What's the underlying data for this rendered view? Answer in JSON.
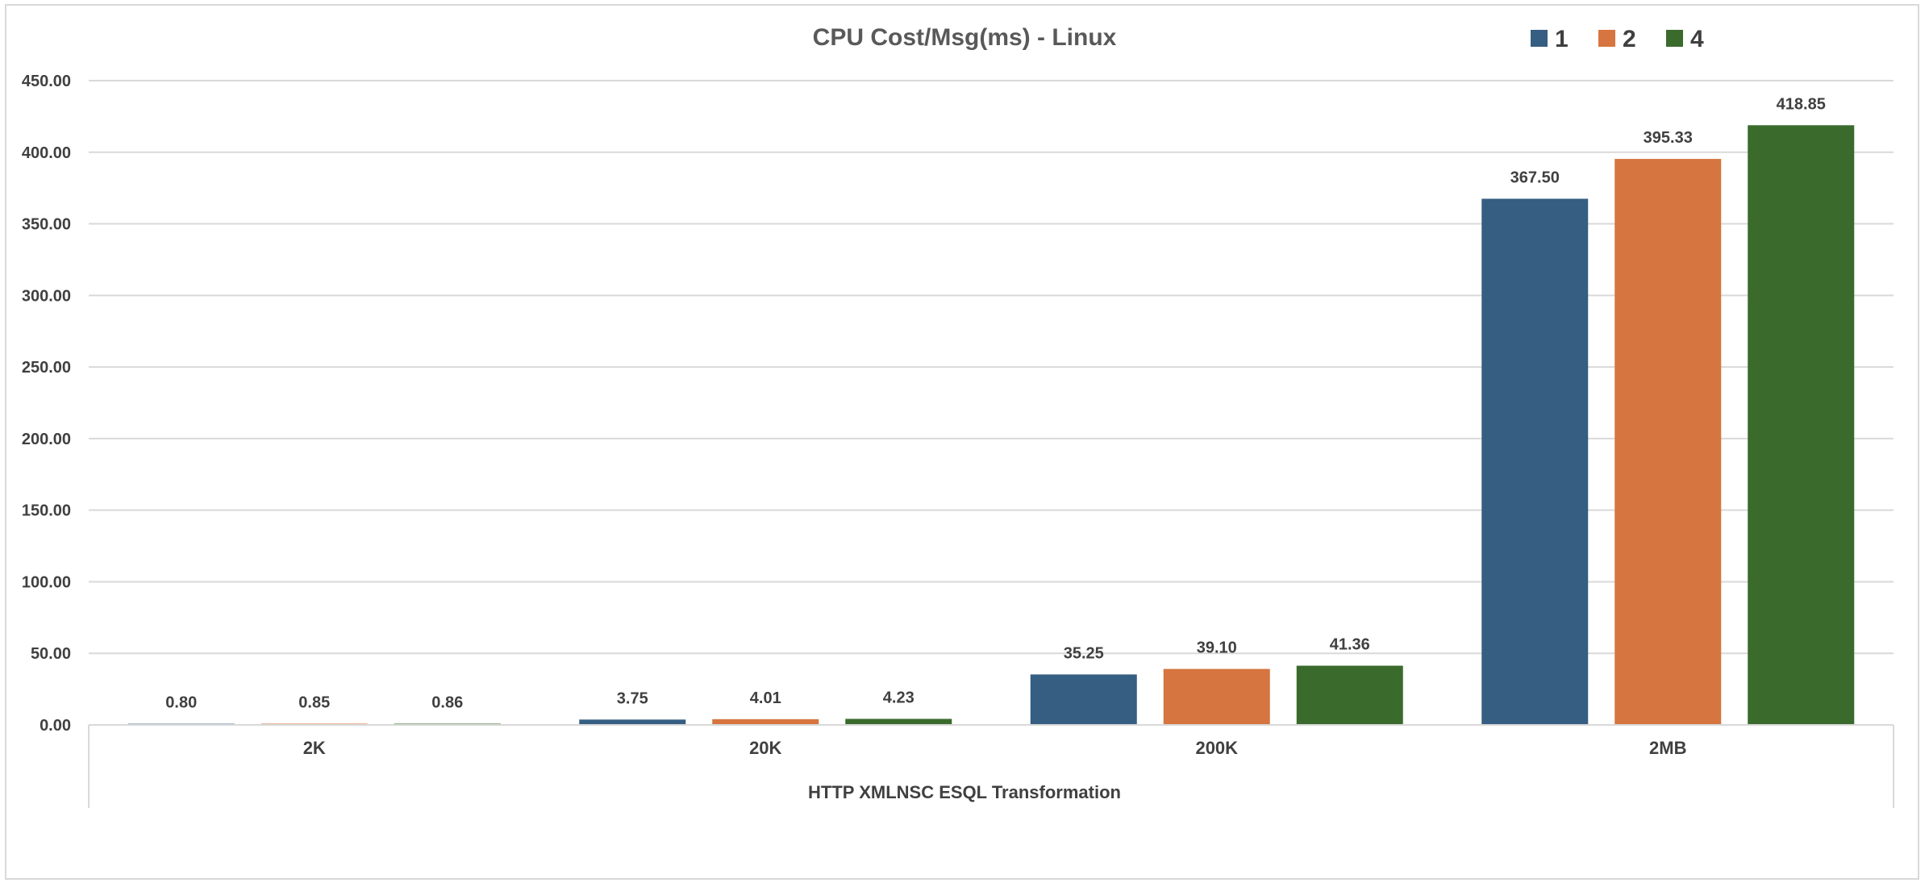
{
  "chart_data": {
    "type": "bar",
    "title": "CPU Cost/Msg(ms) - Linux",
    "group_label": "HTTP XMLNSC ESQL Transformation",
    "categories": [
      "2K",
      "20K",
      "200K",
      "2MB"
    ],
    "series": [
      {
        "name": "1",
        "color": "#355e82",
        "values": [
          0.8,
          3.75,
          35.25,
          367.5
        ]
      },
      {
        "name": "2",
        "color": "#d6753f",
        "values": [
          0.85,
          4.01,
          39.1,
          395.33
        ]
      },
      {
        "name": "4",
        "color": "#3a6b2d",
        "values": [
          0.86,
          4.23,
          41.36,
          418.85
        ]
      }
    ],
    "value_labels": [
      [
        "0.80",
        "3.75",
        "35.25",
        "367.50"
      ],
      [
        "0.85",
        "4.01",
        "39.10",
        "395.33"
      ],
      [
        "0.86",
        "4.23",
        "41.36",
        "418.85"
      ]
    ],
    "y_ticks": [
      "0.00",
      "50.00",
      "100.00",
      "150.00",
      "200.00",
      "250.00",
      "300.00",
      "350.00",
      "400.00",
      "450.00"
    ],
    "ylim": [
      0,
      450
    ],
    "grid": true,
    "legend_position": "top-right"
  }
}
